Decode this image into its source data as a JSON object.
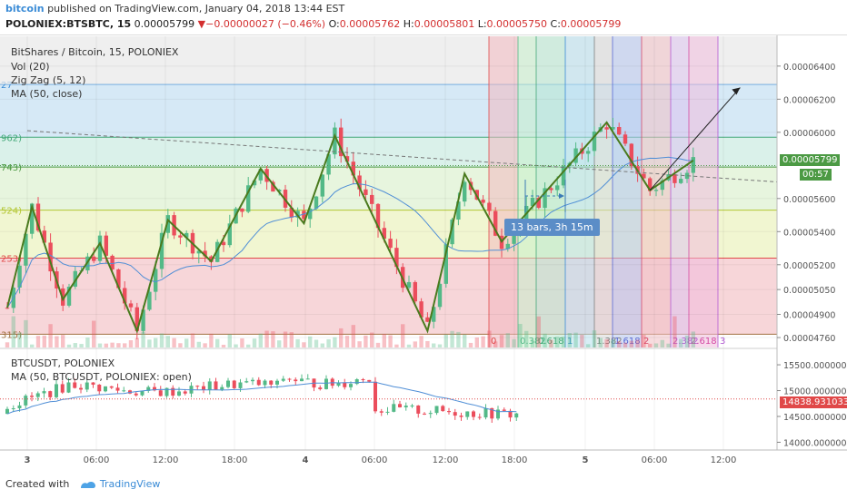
{
  "header": {
    "brand": "bitcoin",
    "published": " published on TradingView.com, January 04, 2018 13:44 EST",
    "symbol": "POLONIEX:BTSBTC, 15",
    "last": "0.00005799",
    "change_arrow": "▼",
    "change": "−0.00000027 (−0.46%)",
    "o_label": "O:",
    "o": "0.00005762",
    "h_label": "H:",
    "h": "0.00005801",
    "l_label": "L:",
    "l": "0.00005750",
    "c_label": "C:",
    "c": "0.00005799"
  },
  "main_legend": {
    "title": "BitShares / Bitcoin, 15, POLONIEX",
    "vol": "Vol (20)",
    "zigzag": "Zig Zag (5, 12)",
    "ma": "MA (50, close)"
  },
  "sub_legend": {
    "title": "BTCUSDT, POLONIEX",
    "ma": "MA (50, BTCUSDT, POLONIEX: open)"
  },
  "price_tags": {
    "last": "0.00005799",
    "countdown": "00:57",
    "sub_last": "14838.93103320"
  },
  "measure_label": "13 bars, 3h 15m",
  "footer": {
    "created": "Created with",
    "brand": "TradingView"
  },
  "colors": {
    "up": "#53b987",
    "down": "#eb4d5c",
    "zigzag": "#4a7a1e",
    "ma": "#4f8ed6",
    "accent": "#3a8bd6"
  },
  "chart_data": [
    {
      "type": "candlestick",
      "title": "BitShares / Bitcoin, 15, POLONIEX",
      "x_ticks": [
        "3",
        "06:00",
        "12:00",
        "18:00",
        "4",
        "06:00",
        "12:00",
        "18:00",
        "5",
        "06:00",
        "12:00"
      ],
      "y_ticks": [
        "0.00006400",
        "0.00006200",
        "0.00006000",
        "0.00005600",
        "0.00005400",
        "0.00005200",
        "0.00005050",
        "0.00004900",
        "0.00004760"
      ],
      "ylim": [
        4.7e-05,
        6.58e-05
      ],
      "fib_left_labels": [
        "27",
        "962)",
        "743)",
        "524)",
        "253)",
        "315)"
      ],
      "fib_levels": [
        6.29e-05,
        5.97e-05,
        5.79e-05,
        5.53e-05,
        5.24e-05,
        4.78e-05
      ],
      "time_fib_labels": [
        "0",
        "0.382",
        "0.618",
        "1",
        "1.382",
        "1.618",
        "2",
        "2.382",
        "2.618",
        "3"
      ],
      "zigzag_points": [
        [
          0,
          4.94e-05
        ],
        [
          4,
          5.55e-05
        ],
        [
          9,
          4.99e-05
        ],
        [
          15,
          5.33e-05
        ],
        [
          21,
          4.8e-05
        ],
        [
          26,
          5.47e-05
        ],
        [
          33,
          5.22e-05
        ],
        [
          41,
          5.78e-05
        ],
        [
          48,
          5.45e-05
        ],
        [
          53,
          5.98e-05
        ],
        [
          68,
          4.8e-05
        ],
        [
          74,
          5.75e-05
        ],
        [
          80,
          5.34e-05
        ],
        [
          89,
          5.72e-05
        ],
        [
          97,
          6.06e-05
        ],
        [
          104,
          5.65e-05
        ],
        [
          111,
          5.83e-05
        ]
      ],
      "projection": {
        "from": [
          104,
          5.65e-05
        ],
        "to": [
          118,
          6.27e-05
        ]
      }
    },
    {
      "type": "candlestick",
      "title": "BTCUSDT, POLONIEX",
      "y_ticks": [
        "15500.00000000",
        "15000.00000000",
        "14500.00000000",
        "14000.00000000"
      ],
      "ylim": [
        13850,
        15800
      ],
      "last": 14838.9310332
    }
  ]
}
